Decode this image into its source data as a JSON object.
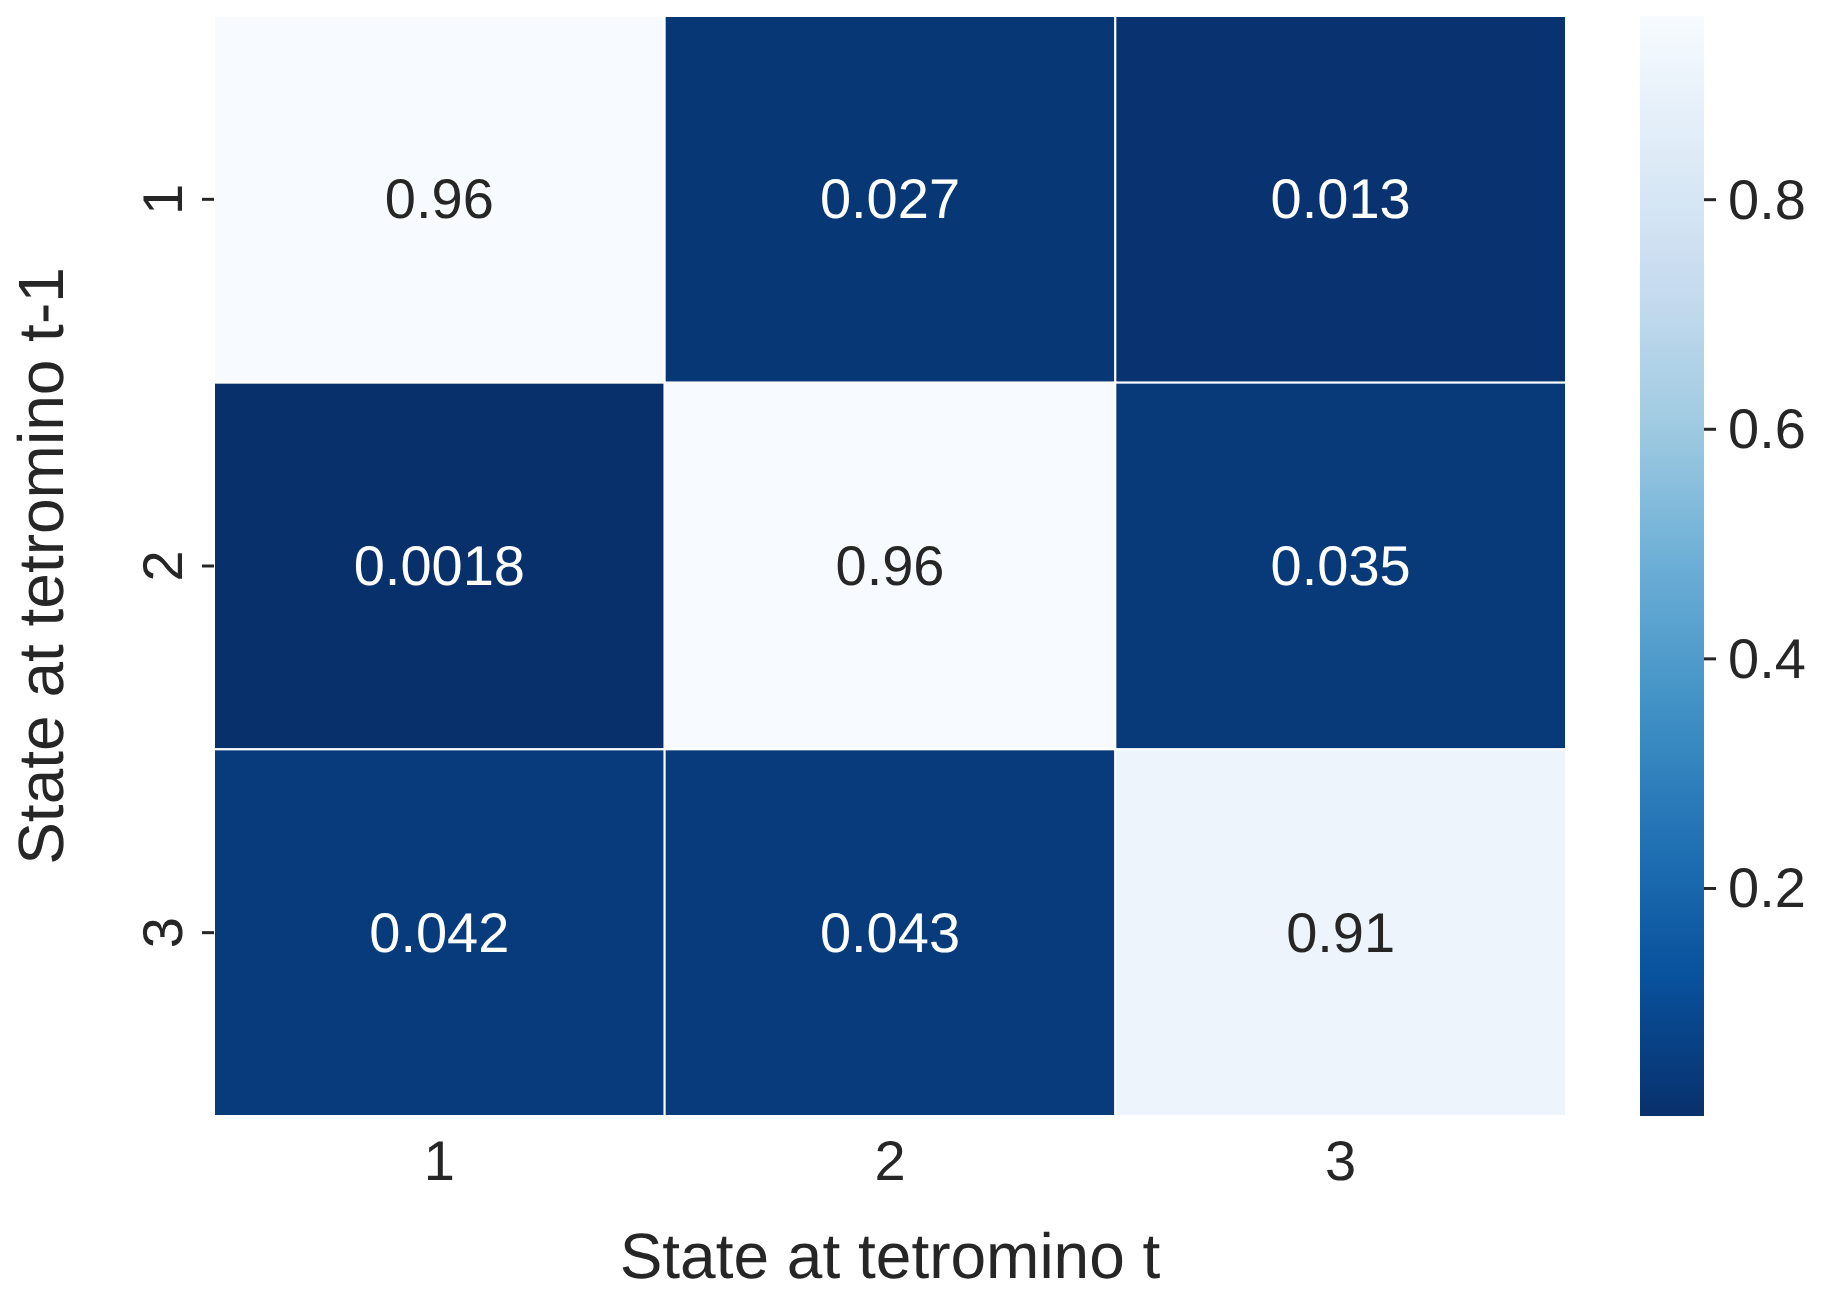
{
  "chart_data": {
    "type": "heatmap",
    "xlabel": "State at tetromino t",
    "ylabel": "State at tetromino t-1",
    "categories": [
      "1",
      "2",
      "3"
    ],
    "y_categories": [
      "1",
      "2",
      "3"
    ],
    "cells": [
      [
        0.96,
        0.027,
        0.013
      ],
      [
        0.0018,
        0.96,
        0.035
      ],
      [
        0.042,
        0.043,
        0.91
      ]
    ],
    "data_labels": true,
    "clim": [
      0.0018,
      0.96
    ],
    "cticks": [
      0.2,
      0.4,
      0.6,
      0.8
    ]
  }
}
